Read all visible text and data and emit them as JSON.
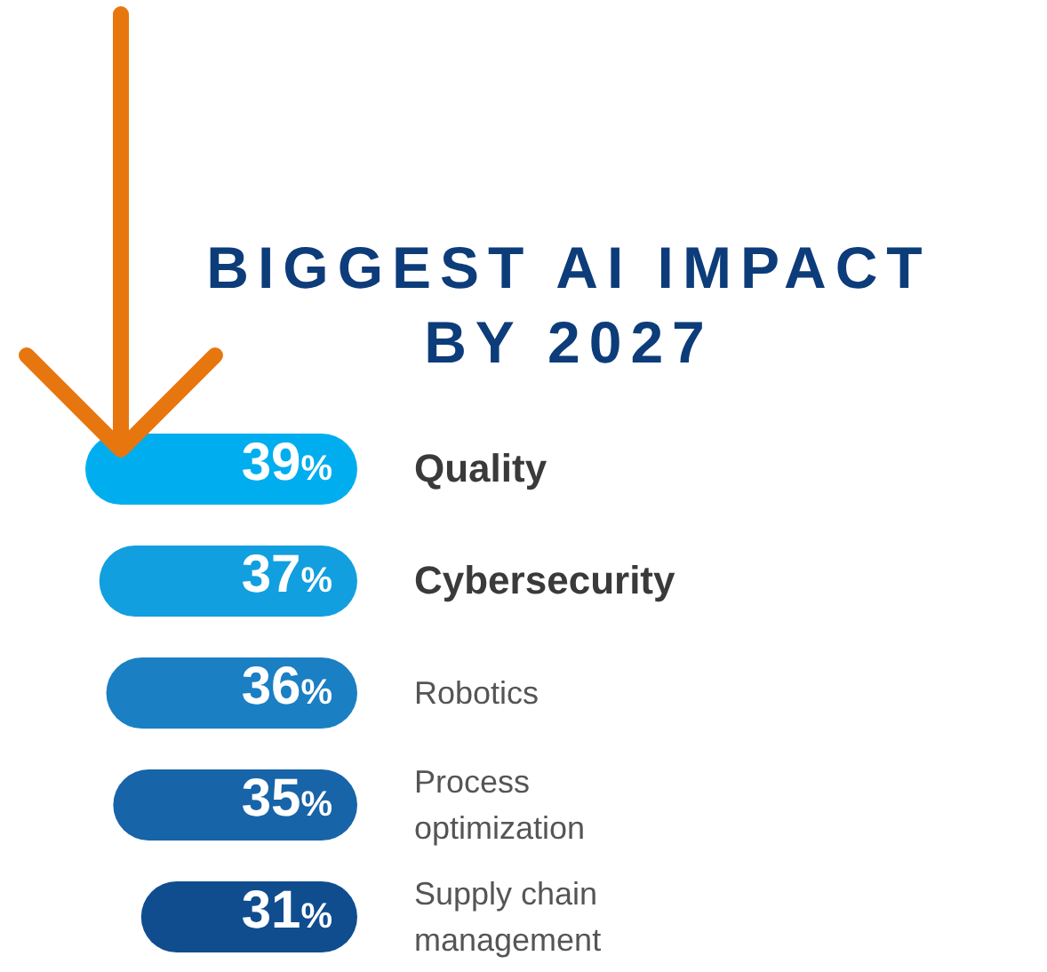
{
  "chart_data": {
    "type": "bar",
    "orientation": "horizontal",
    "title": "BIGGEST AI IMPACT BY 2027",
    "categories": [
      "Quality",
      "Cybersecurity",
      "Robotics",
      "Process optimization",
      "Supply chain management"
    ],
    "values": [
      39,
      37,
      36,
      35,
      31
    ],
    "colors": [
      "#00aeef",
      "#129fdf",
      "#1b7fc4",
      "#1764a9",
      "#0f4d8f"
    ],
    "value_labels": [
      "39%",
      "37%",
      "36%",
      "35%",
      "31%"
    ]
  }
}
